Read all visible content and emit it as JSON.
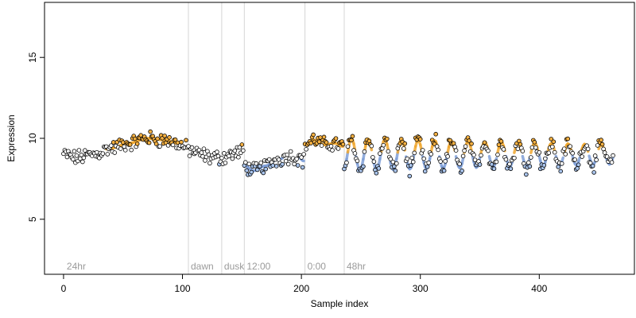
{
  "chart_data": {
    "type": "scatter",
    "title": "",
    "xlabel": "Sample index",
    "ylabel": "Expression",
    "xlim": [
      -16,
      480
    ],
    "ylim": [
      1.6,
      18.4
    ],
    "x_ticks": [
      0,
      100,
      200,
      300,
      400
    ],
    "y_ticks": [
      5,
      10,
      15
    ],
    "grid": false,
    "colors": {
      "high": "#f5b041",
      "low": "#a9c4ec",
      "neutral": "#ffffff",
      "band_high": "#f0a830",
      "band_low": "#7f9fd8",
      "period_line": "#d6d6d6",
      "period_label": "#9a9a9a"
    },
    "periods": [
      {
        "label": "24hr",
        "x": 0
      },
      {
        "label": "dawn",
        "x": 105
      },
      {
        "label": "dusk",
        "x": 133
      },
      {
        "label": "12:00",
        "x": 152
      },
      {
        "label": "0:00",
        "x": 203
      },
      {
        "label": "48hr",
        "x": 236
      }
    ],
    "series_segments": [
      {
        "x_start": 0,
        "x_end": 104,
        "type": "smooth",
        "knots": [
          [
            0,
            9.0
          ],
          [
            10,
            8.8
          ],
          [
            25,
            9.0
          ],
          [
            40,
            9.4
          ],
          [
            55,
            9.7
          ],
          [
            70,
            10.0
          ],
          [
            85,
            9.9
          ],
          [
            95,
            9.7
          ],
          [
            104,
            9.4
          ]
        ]
      },
      {
        "x_start": 105,
        "x_end": 151,
        "type": "smooth",
        "knots": [
          [
            105,
            9.3
          ],
          [
            115,
            9.0
          ],
          [
            125,
            8.8
          ],
          [
            133,
            8.8
          ],
          [
            140,
            9.0
          ],
          [
            151,
            9.2
          ]
        ]
      },
      {
        "x_start": 152,
        "x_end": 202,
        "type": "smooth",
        "knots": [
          [
            152,
            8.3
          ],
          [
            160,
            8.0
          ],
          [
            170,
            8.3
          ],
          [
            180,
            8.7
          ],
          [
            190,
            8.9
          ],
          [
            198,
            8.8
          ],
          [
            202,
            8.6
          ]
        ]
      },
      {
        "x_start": 203,
        "x_end": 235,
        "type": "smooth",
        "knots": [
          [
            203,
            9.6
          ],
          [
            210,
            9.9
          ],
          [
            220,
            9.6
          ],
          [
            228,
            9.7
          ],
          [
            235,
            9.5
          ]
        ]
      },
      {
        "x_start": 236,
        "x_end": 462,
        "type": "oscillating",
        "mean": 9.0,
        "amplitude_start": 1.0,
        "amplitude_end": 0.6,
        "period": 14,
        "phase": -1.2
      }
    ]
  }
}
